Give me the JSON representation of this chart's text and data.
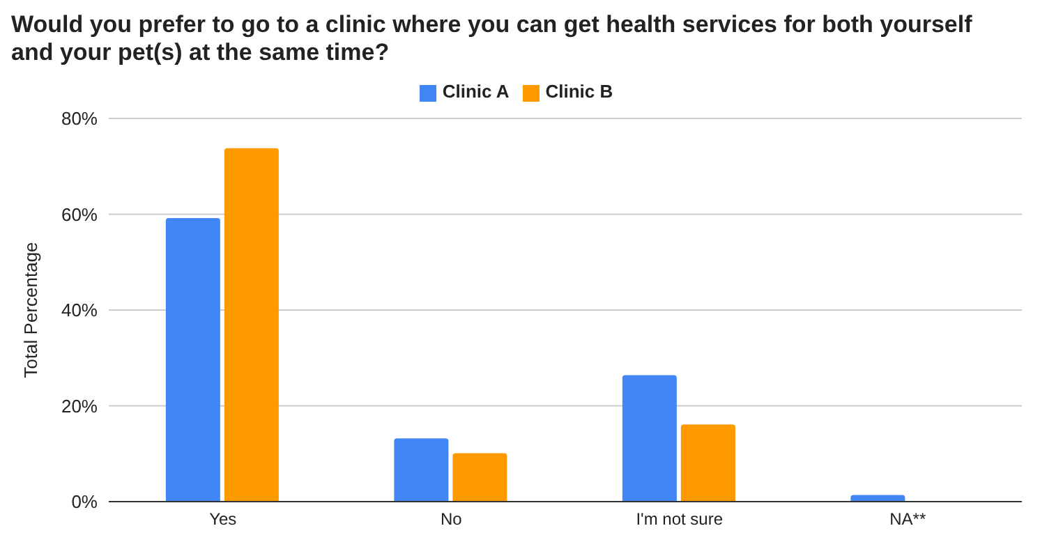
{
  "chart_data": {
    "type": "bar",
    "title": "Would you prefer to go to a clinic where you can get health services for both yourself and your pet(s) at the same time?",
    "ylabel": "Total Percentage",
    "categories": [
      "Yes",
      "No",
      "I'm not sure",
      "NA**"
    ],
    "series": [
      {
        "name": "Clinic A",
        "color": "#4285f4",
        "values": [
          59.2,
          13.2,
          26.4,
          1.4
        ]
      },
      {
        "name": "Clinic B",
        "color": "#ff9900",
        "values": [
          73.8,
          10.1,
          16.1,
          0
        ]
      }
    ],
    "ylim": [
      0,
      80
    ],
    "yticks": [
      {
        "value": 0,
        "label": "0%"
      },
      {
        "value": 20,
        "label": "20%"
      },
      {
        "value": 40,
        "label": "40%"
      },
      {
        "value": 60,
        "label": "60%"
      },
      {
        "value": 80,
        "label": "80%"
      }
    ],
    "grid": "y",
    "legend": "top"
  }
}
